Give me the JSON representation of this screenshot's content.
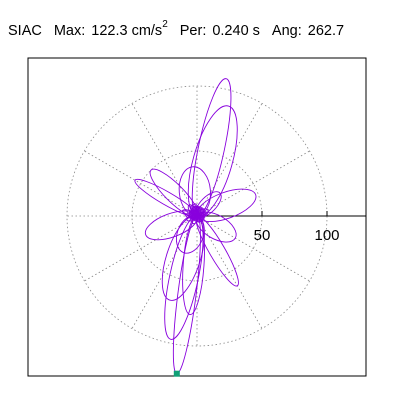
{
  "header": {
    "station": "SIAC",
    "max_label": "Max:",
    "max_value": "122.3 cm/s",
    "max_unit_exp": "2",
    "per_label": "Per:",
    "per_value": "0.240 s",
    "ang_label": "Ang:",
    "ang_value": "262.7"
  },
  "colors": {
    "trace": "#8800dd",
    "grid": "#888888",
    "marker": "#11a077",
    "frame": "#000000"
  },
  "chart_data": {
    "type": "scatter",
    "coordinate_system": "polar",
    "r_max": 130,
    "r_ticks": [
      50,
      100
    ],
    "r_tick_labels": [
      "50",
      "100"
    ],
    "rings": [
      50,
      100
    ],
    "spokes_deg": [
      0,
      30,
      60,
      90,
      120,
      150,
      180,
      210,
      240,
      270,
      300,
      330
    ],
    "grid_style": "dotted",
    "peak_point": {
      "r": 122.3,
      "angle_deg": 262.7
    },
    "orbit_components": [
      {
        "peak": 122.3,
        "angle_deg": 262.7,
        "minor": 14,
        "count": 1
      },
      {
        "peak": 108,
        "angle_deg": 78,
        "minor": 20,
        "count": 1
      },
      {
        "peak": 97,
        "angle_deg": 258,
        "minor": 22,
        "count": 1
      },
      {
        "peak": 88,
        "angle_deg": 74,
        "minor": 30,
        "count": 1
      },
      {
        "peak": 76,
        "angle_deg": 266,
        "minor": 16,
        "count": 1
      },
      {
        "peak": 68,
        "angle_deg": 252,
        "minor": 26,
        "count": 1
      },
      {
        "peak": 62,
        "angle_deg": 300,
        "minor": 12,
        "count": 1
      },
      {
        "peak": 55,
        "angle_deg": 150,
        "minor": 10,
        "count": 1
      },
      {
        "peak": 50,
        "angle_deg": 135,
        "minor": 14,
        "count": 1
      },
      {
        "peak": 48,
        "angle_deg": 20,
        "minor": 20,
        "count": 1
      },
      {
        "peak": 42,
        "angle_deg": 200,
        "minor": 18,
        "count": 1
      },
      {
        "peak": 38,
        "angle_deg": 95,
        "minor": 24,
        "count": 1
      },
      {
        "peak": 34,
        "angle_deg": 330,
        "minor": 18,
        "count": 1
      },
      {
        "peak": 30,
        "angle_deg": 250,
        "minor": 20,
        "count": 1
      },
      {
        "peak": 25,
        "angle_deg": 45,
        "minor": 12,
        "count": 1
      },
      {
        "peak": 12,
        "angle_deg": 0,
        "minor": 8,
        "count": 14
      }
    ]
  }
}
